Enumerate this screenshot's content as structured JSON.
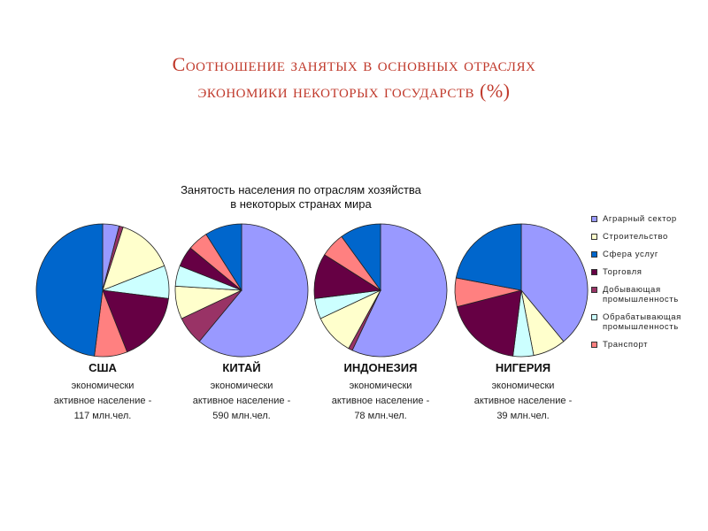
{
  "slide": {
    "title_line1": "Соотношение занятых в основных отраслях",
    "title_line2": "экономики некоторых государств (%)"
  },
  "colors": {
    "agrarian": "#9999ff",
    "construction": "#ffffcc",
    "services": "#0066cc",
    "trade": "#660044",
    "mining": "#993366",
    "manufacturing": "#ccffff",
    "transport": "#ff8080"
  },
  "chart_data": {
    "type": "pie",
    "title_line1": "Занятость населения по отраслям хозяйства",
    "title_line2": "в некоторых странах мира",
    "legend_position": "right",
    "categories": [
      "Аграрный сектор",
      "Строительство",
      "Сфера услуг",
      "Торговля",
      "Добывающая\nпромышленность",
      "Обрабатывающая\nпромышленность",
      "Транспорт"
    ],
    "pies": [
      {
        "country": "США",
        "desc1": "экономически",
        "desc2": "активное население -",
        "desc3": "117 млн.чел.",
        "slices": [
          {
            "cat": "agrarian",
            "value": 4
          },
          {
            "cat": "mining",
            "value": 1
          },
          {
            "cat": "construction",
            "value": 14
          },
          {
            "cat": "manufacturing",
            "value": 8
          },
          {
            "cat": "trade",
            "value": 17
          },
          {
            "cat": "transport",
            "value": 8
          },
          {
            "cat": "services",
            "value": 48
          }
        ]
      },
      {
        "country": "КИТАЙ",
        "desc1": "экономически",
        "desc2": "активное население -",
        "desc3": "590 млн.чел.",
        "slices": [
          {
            "cat": "agrarian",
            "value": 61
          },
          {
            "cat": "mining",
            "value": 7
          },
          {
            "cat": "construction",
            "value": 8
          },
          {
            "cat": "manufacturing",
            "value": 5
          },
          {
            "cat": "trade",
            "value": 5
          },
          {
            "cat": "transport",
            "value": 5
          },
          {
            "cat": "services",
            "value": 9
          }
        ]
      },
      {
        "country": "ИНДОНЕЗИЯ",
        "desc1": "экономически",
        "desc2": "активное население -",
        "desc3": "78 млн.чел.",
        "slices": [
          {
            "cat": "agrarian",
            "value": 57
          },
          {
            "cat": "mining",
            "value": 1
          },
          {
            "cat": "construction",
            "value": 10
          },
          {
            "cat": "manufacturing",
            "value": 5
          },
          {
            "cat": "trade",
            "value": 11
          },
          {
            "cat": "transport",
            "value": 6
          },
          {
            "cat": "services",
            "value": 10
          }
        ]
      },
      {
        "country": "НИГЕРИЯ",
        "desc1": "экономически",
        "desc2": "активное население -",
        "desc3": "39 млн.чел.",
        "slices": [
          {
            "cat": "agrarian",
            "value": 39
          },
          {
            "cat": "construction",
            "value": 8
          },
          {
            "cat": "manufacturing",
            "value": 5
          },
          {
            "cat": "trade",
            "value": 19
          },
          {
            "cat": "transport",
            "value": 7
          },
          {
            "cat": "services",
            "value": 22
          }
        ]
      }
    ]
  }
}
